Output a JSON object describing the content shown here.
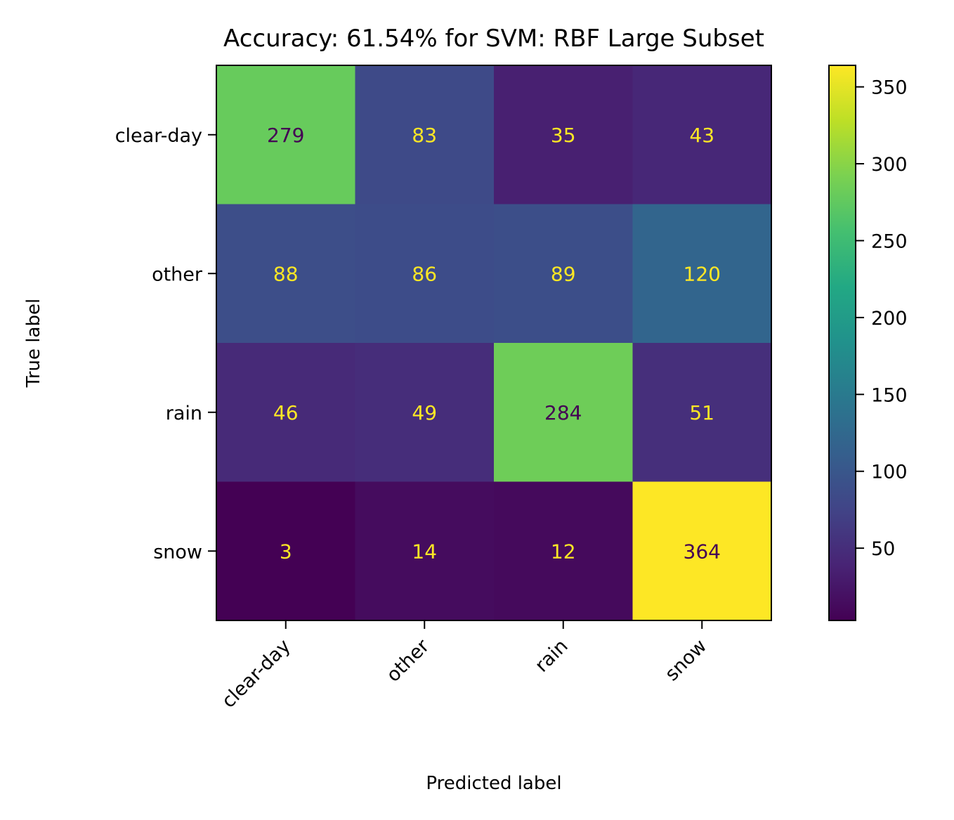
{
  "chart_data": {
    "type": "heatmap",
    "title": "Accuracy: 61.54% for SVM: RBF Large Subset",
    "xlabel": "Predicted label",
    "ylabel": "True label",
    "x_categories": [
      "clear-day",
      "other",
      "rain",
      "snow"
    ],
    "y_categories": [
      "clear-day",
      "other",
      "rain",
      "snow"
    ],
    "matrix": [
      [
        279,
        83,
        35,
        43
      ],
      [
        88,
        86,
        89,
        120
      ],
      [
        46,
        49,
        284,
        51
      ],
      [
        3,
        14,
        12,
        364
      ]
    ],
    "colormap": "viridis",
    "color_range": [
      3,
      364
    ],
    "colorbar_ticks": [
      50,
      100,
      150,
      200,
      250,
      300,
      350
    ],
    "grid": false,
    "legend": "colorbar-right"
  }
}
